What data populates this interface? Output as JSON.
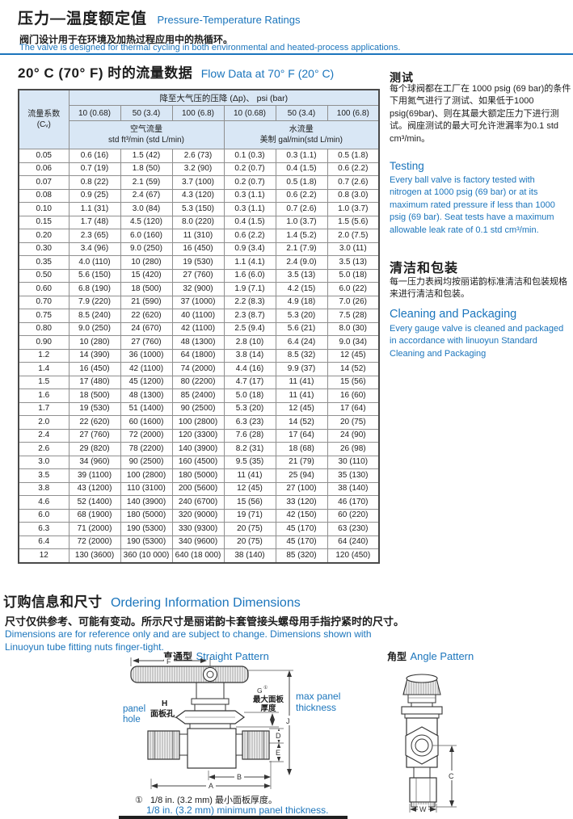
{
  "colors": {
    "accent_blue": "#1b75bc"
  },
  "header": {
    "title_zh": "压力—温度额定值",
    "title_en": "Pressure-Temperature Ratings",
    "desc_zh": "阀门设计用于在环境及加热过程应用中的热循环。",
    "desc_en": "The  valve is designed for thermal cycling in both environmental and heated-process applications."
  },
  "flow_section": {
    "title_zh": "20° C (70° F) 时的流量数据",
    "title_en": "Flow Data at 70° F (20° C)"
  },
  "flow_table": {
    "pressure_header": "降至大气压的压降 (Δp)、 psi (bar)",
    "pressure_cols": [
      "10 (0.68)",
      "50 (3.4)",
      "100 (6.8)",
      "10 (0.68)",
      "50 (3.4)",
      "100 (6.8)"
    ],
    "cv_line1": "流量系数",
    "cv_line2": "(Cᵥ)",
    "air_line1": "空气流量",
    "air_line2": "std ft³/min (std L/min)",
    "water_line1": "水流量",
    "water_line2": "美制 gal/min(std L/min)",
    "rows": [
      [
        "0.05",
        "0.6 (16)",
        "1.5 (42)",
        "2.6 (73)",
        "0.1 (0.3)",
        "0.3 (1.1)",
        "0.5 (1.8)"
      ],
      [
        "0.06",
        "0.7 (19)",
        "1.8 (50)",
        "3.2 (90)",
        "0.2 (0.7)",
        "0.4 (1.5)",
        "0.6 (2.2)"
      ],
      [
        "0.07",
        "0.8 (22)",
        "2.1 (59)",
        "3.7 (100)",
        "0.2 (0.7)",
        "0.5 (1.8)",
        "0.7 (2.6)"
      ],
      [
        "0.08",
        "0.9 (25)",
        "2.4 (67)",
        "4.3 (120)",
        "0.3 (1.1)",
        "0.6 (2.2)",
        "0.8 (3.0)"
      ],
      [
        "0.10",
        "1.1 (31)",
        "3.0 (84)",
        "5.3 (150)",
        "0.3 (1.1)",
        "0.7 (2.6)",
        "1.0 (3.7)"
      ],
      [
        "0.15",
        "1.7 (48)",
        "4.5 (120)",
        "8.0 (220)",
        "0.4 (1.5)",
        "1.0 (3.7)",
        "1.5 (5.6)"
      ],
      [
        "0.20",
        "2.3 (65)",
        "6.0 (160)",
        "11 (310)",
        "0.6 (2.2)",
        "1.4 (5.2)",
        "2.0 (7.5)"
      ],
      [
        "0.30",
        "3.4 (96)",
        "9.0 (250)",
        "16 (450)",
        "0.9 (3.4)",
        "2.1 (7.9)",
        "3.0 (11)"
      ],
      [
        "0.35",
        "4.0 (110)",
        "10 (280)",
        "19 (530)",
        "1.1 (4.1)",
        "2.4 (9.0)",
        "3.5 (13)"
      ],
      [
        "0.50",
        "5.6 (150)",
        "15 (420)",
        "27 (760)",
        "1.6 (6.0)",
        "3.5 (13)",
        "5.0 (18)"
      ],
      [
        "0.60",
        "6.8 (190)",
        "18 (500)",
        "32 (900)",
        "1.9 (7.1)",
        "4.2 (15)",
        "6.0 (22)"
      ],
      [
        "0.70",
        "7.9 (220)",
        "21 (590)",
        "37 (1000)",
        "2.2 (8.3)",
        "4.9 (18)",
        "7.0 (26)"
      ],
      [
        "0.75",
        "8.5 (240)",
        "22 (620)",
        "40 (1100)",
        "2.3 (8.7)",
        "5.3 (20)",
        "7.5 (28)"
      ],
      [
        "0.80",
        "9.0 (250)",
        "24 (670)",
        "42 (1100)",
        "2.5 (9.4)",
        "5.6 (21)",
        "8.0 (30)"
      ],
      [
        "0.90",
        "10 (280)",
        "27 (760)",
        "48 (1300)",
        "2.8 (10)",
        "6.4 (24)",
        "9.0 (34)"
      ],
      [
        "1.2",
        "14 (390)",
        "36 (1000)",
        "64 (1800)",
        "3.8 (14)",
        "8.5 (32)",
        "12 (45)"
      ],
      [
        "1.4",
        "16 (450)",
        "42 (1100)",
        "74 (2000)",
        "4.4 (16)",
        "9.9 (37)",
        "14 (52)"
      ],
      [
        "1.5",
        "17 (480)",
        "45 (1200)",
        "80 (2200)",
        "4.7 (17)",
        "11 (41)",
        "15 (56)"
      ],
      [
        "1.6",
        "18 (500)",
        "48 (1300)",
        "85 (2400)",
        "5.0 (18)",
        "11 (41)",
        "16 (60)"
      ],
      [
        "1.7",
        "19 (530)",
        "51 (1400)",
        "90 (2500)",
        "5.3 (20)",
        "12 (45)",
        "17 (64)"
      ],
      [
        "2.0",
        "22 (620)",
        "60 (1600)",
        "100 (2800)",
        "6.3 (23)",
        "14 (52)",
        "20 (75)"
      ],
      [
        "2.4",
        "27 (760)",
        "72 (2000)",
        "120 (3300)",
        "7.6 (28)",
        "17 (64)",
        "24 (90)"
      ],
      [
        "2.6",
        "29 (820)",
        "78 (2200)",
        "140 (3900)",
        "8.2 (31)",
        "18 (68)",
        "26 (98)"
      ],
      [
        "3.0",
        "34 (960)",
        "90 (2500)",
        "160 (4500)",
        "9.5 (35)",
        "21 (79)",
        "30 (110)"
      ],
      [
        "3.5",
        "39 (1100)",
        "100 (2800)",
        "180 (5000)",
        "11 (41)",
        "25 (94)",
        "35 (130)"
      ],
      [
        "3.8",
        "43 (1200)",
        "110 (3100)",
        "200 (5600)",
        "12 (45)",
        "27 (100)",
        "38 (140)"
      ],
      [
        "4.6",
        "52 (1400)",
        "140 (3900)",
        "240 (6700)",
        "15 (56)",
        "33 (120)",
        "46 (170)"
      ],
      [
        "6.0",
        "68 (1900)",
        "180 (5000)",
        "320 (9000)",
        "19 (71)",
        "42 (150)",
        "60 (220)"
      ],
      [
        "6.3",
        "71 (2000)",
        "190 (5300)",
        "330 (9300)",
        "20 (75)",
        "45 (170)",
        "63 (230)"
      ],
      [
        "6.4",
        "72 (2000)",
        "190 (5300)",
        "340 (9600)",
        "20 (75)",
        "45 (170)",
        "64 (240)"
      ],
      [
        "12",
        "130 (3600)",
        "360 (10 000)",
        "640 (18 000)",
        "38 (140)",
        "85 (320)",
        "120 (450)"
      ]
    ]
  },
  "sidebar": {
    "testing_title_zh": "测试",
    "testing_body_zh": "每个球阀都在工厂在 1000 psig (69 bar)的条件下用氮气进行了测试、如果低于1000 psig(69bar)、则在其最大额定压力下进行测试。阀座测试的最大可允许泄漏率为0.1 std cm³/min。",
    "testing_title_en": "Testing",
    "testing_body_en": "Every  ball  valve is factory tested with nitrogen at 1000 psig (69 bar) or at its maximum rated pressure if less than 1000 psig (69 bar). Seat tests have a maximum allowable leak rate of 0.1 std cm³/min.",
    "cleaning_title_zh": "清洁和包装",
    "cleaning_body_zh": "每一压力表阀均按丽诺韵标准清洁和包装规格来进行清洁和包装。",
    "cleaning_title_en": "Cleaning and Packaging",
    "cleaning_body_en": "Every gauge valve is cleaned and packaged in accordance with linuoyun Standard Cleaning and Packaging"
  },
  "ordering": {
    "title_zh": "订购信息和尺寸",
    "title_en": "Ordering Information Dimensions",
    "desc_zh": "尺寸仅供参考、可能有变动。所示尺寸是丽诺韵卡套管接头螺母用手指拧紧时的尺寸。",
    "desc_en": "Dimensions are for reference only and are subject to change. Dimensions shown with Linuoyun tube fitting nuts finger-tight."
  },
  "diagrams": {
    "straight_title_zh": "直通型",
    "straight_title_en": "Straight Pattern",
    "angle_title_zh": "角型",
    "angle_title_en": "Angle Pattern",
    "panel_hole_en": "panel hole",
    "panel_h": "H",
    "panel_hole_zh": "面板孔",
    "g_label": "G",
    "g_note": "①",
    "max_panel_zh": "最大面板厚度",
    "max_panel_en": "max panel thickness",
    "dim_f": "F",
    "dim_j": "J",
    "dim_d": "D",
    "dim_e": "E",
    "dim_b": "B",
    "dim_a": "A",
    "dim_c": "C",
    "dim_w": "W",
    "footnote_marker": "①",
    "footnote_zh": "1/8 in. (3.2 mm)  最小面板厚度。",
    "footnote_en": "1/8 in. (3.2 mm) minimum panel thickness."
  }
}
